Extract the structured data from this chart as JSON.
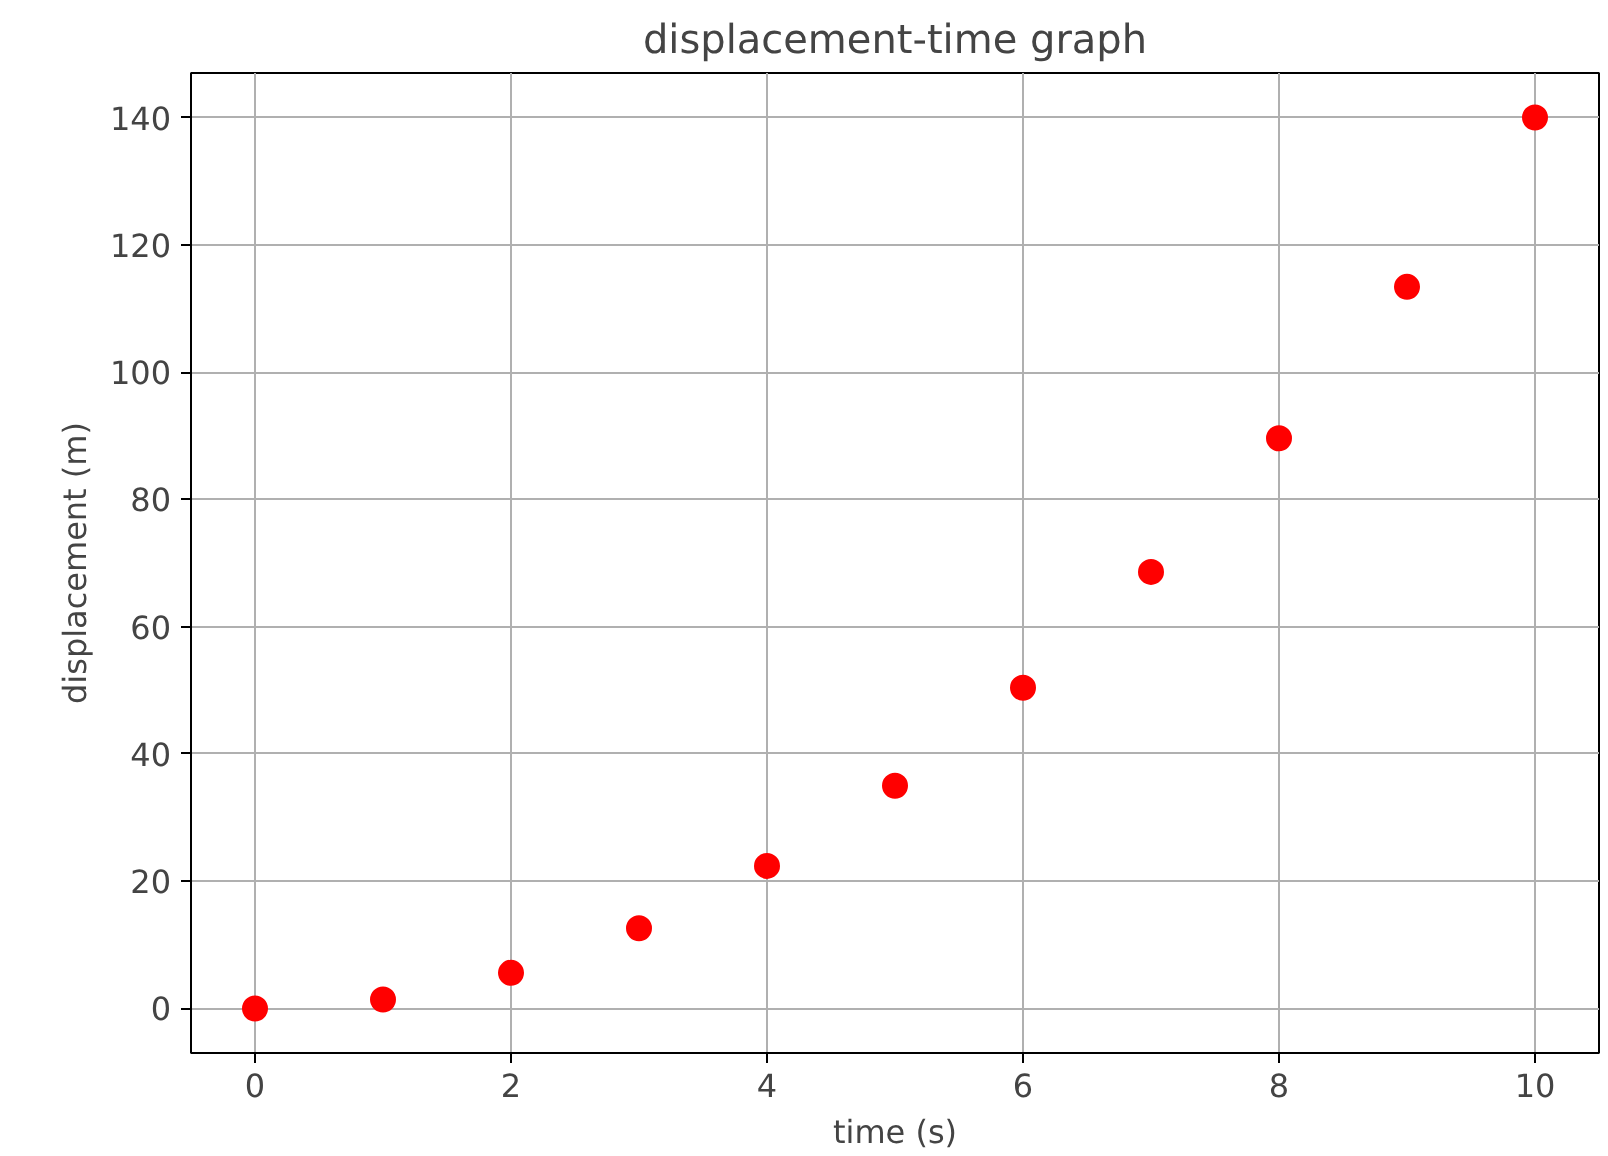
{
  "chart_data": {
    "type": "scatter",
    "title": "displacement-time graph",
    "xlabel": "time (s)",
    "ylabel": "displacement (m)",
    "x": [
      0,
      1,
      2,
      3,
      4,
      5,
      6,
      7,
      8,
      9,
      10
    ],
    "series": [
      {
        "color": "#ff0000",
        "values": [
          0,
          1.4,
          5.6,
          12.6,
          22.4,
          35,
          50.4,
          68.6,
          89.6,
          113.4,
          140
        ]
      }
    ],
    "xlim": [
      -0.5,
      10.5
    ],
    "ylim": [
      -7,
      147
    ],
    "xticks": [
      0,
      2,
      4,
      6,
      8,
      10
    ],
    "yticks": [
      0,
      20,
      40,
      60,
      80,
      100,
      120,
      140
    ],
    "grid": true,
    "marker": "circle"
  }
}
